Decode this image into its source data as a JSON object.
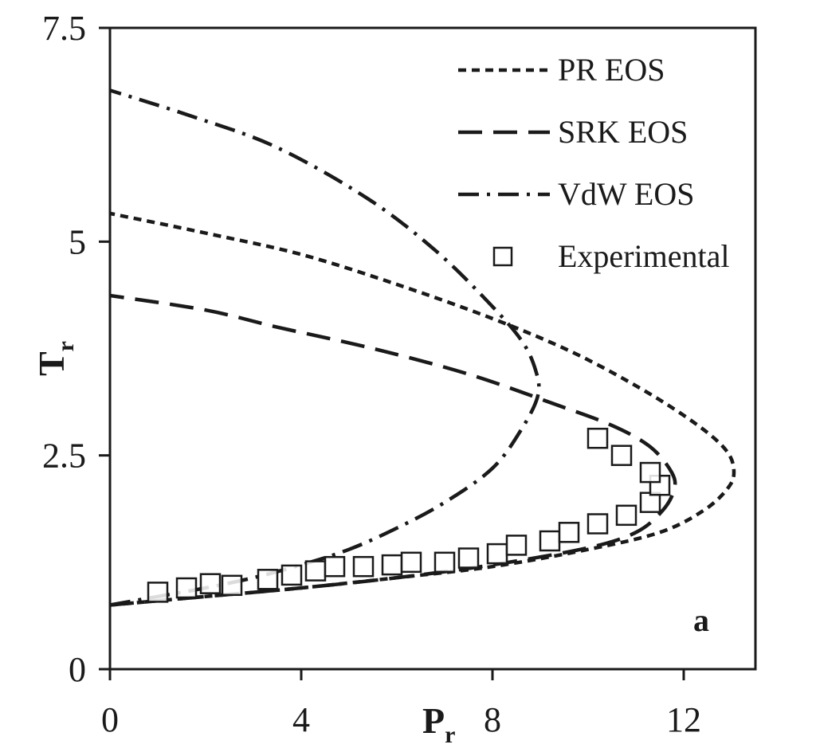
{
  "chart_data": {
    "type": "scatter",
    "title": "",
    "panel_label": "a",
    "xlabel": {
      "main": "P",
      "sub": "r"
    },
    "ylabel": {
      "main": "T",
      "sub": "r"
    },
    "xlim": [
      0,
      13.5
    ],
    "ylim": [
      0,
      7.5
    ],
    "xticks": [
      {
        "value": 0,
        "label": "0"
      },
      {
        "value": 4,
        "label": "4"
      },
      {
        "value": 8,
        "label": "8"
      },
      {
        "value": 12,
        "label": "12"
      }
    ],
    "yticks": [
      {
        "value": 0,
        "label": "0"
      },
      {
        "value": 2.5,
        "label": "2.5"
      },
      {
        "value": 5,
        "label": "5"
      },
      {
        "value": 7.5,
        "label": "7.5"
      }
    ],
    "grid": false,
    "legend_position": "top-right",
    "series": [
      {
        "name": "PR EOS",
        "kind": "line",
        "dash": "short-dash",
        "color": "#1a1a1a",
        "points": [
          [
            0,
            0.75
          ],
          [
            2,
            0.85
          ],
          [
            4,
            0.95
          ],
          [
            6,
            1.07
          ],
          [
            8,
            1.2
          ],
          [
            10,
            1.4
          ],
          [
            11.5,
            1.6
          ],
          [
            12.4,
            1.85
          ],
          [
            12.9,
            2.1
          ],
          [
            13.05,
            2.3
          ],
          [
            12.9,
            2.55
          ],
          [
            12.3,
            2.85
          ],
          [
            11.2,
            3.25
          ],
          [
            9.7,
            3.7
          ],
          [
            8,
            4.1
          ],
          [
            6,
            4.5
          ],
          [
            4,
            4.85
          ],
          [
            2,
            5.1
          ],
          [
            0,
            5.33
          ]
        ]
      },
      {
        "name": "SRK EOS",
        "kind": "line",
        "dash": "long-dash",
        "color": "#1a1a1a",
        "points": [
          [
            0,
            0.75
          ],
          [
            2,
            0.85
          ],
          [
            4,
            0.95
          ],
          [
            6,
            1.07
          ],
          [
            8,
            1.22
          ],
          [
            10,
            1.42
          ],
          [
            11,
            1.6
          ],
          [
            11.55,
            1.85
          ],
          [
            11.8,
            2.1
          ],
          [
            11.75,
            2.3
          ],
          [
            11.3,
            2.6
          ],
          [
            10.5,
            2.85
          ],
          [
            9.3,
            3.1
          ],
          [
            7.5,
            3.45
          ],
          [
            5.5,
            3.75
          ],
          [
            3.5,
            4.0
          ],
          [
            2,
            4.2
          ],
          [
            0,
            4.37
          ]
        ]
      },
      {
        "name": "VdW EOS",
        "kind": "line",
        "dash": "dash-dot",
        "color": "#1a1a1a",
        "points": [
          [
            0,
            0.75
          ],
          [
            1,
            0.85
          ],
          [
            2,
            0.95
          ],
          [
            3,
            1.07
          ],
          [
            4,
            1.22
          ],
          [
            5,
            1.4
          ],
          [
            6,
            1.65
          ],
          [
            7,
            1.95
          ],
          [
            8,
            2.35
          ],
          [
            8.6,
            2.8
          ],
          [
            8.95,
            3.2
          ],
          [
            8.9,
            3.5
          ],
          [
            8.6,
            3.85
          ],
          [
            7.9,
            4.3
          ],
          [
            6.8,
            4.9
          ],
          [
            5.4,
            5.5
          ],
          [
            3.5,
            6.1
          ],
          [
            1.8,
            6.45
          ],
          [
            0,
            6.77
          ]
        ]
      },
      {
        "name": "Experimental",
        "kind": "marker",
        "marker": "open-square",
        "color": "#1a1a1a",
        "points": [
          [
            1.0,
            0.9
          ],
          [
            1.6,
            0.95
          ],
          [
            2.1,
            1.0
          ],
          [
            2.55,
            0.98
          ],
          [
            3.3,
            1.05
          ],
          [
            3.8,
            1.1
          ],
          [
            4.3,
            1.15
          ],
          [
            4.7,
            1.2
          ],
          [
            5.3,
            1.2
          ],
          [
            5.9,
            1.22
          ],
          [
            6.3,
            1.25
          ],
          [
            7.0,
            1.25
          ],
          [
            7.5,
            1.3
          ],
          [
            8.1,
            1.35
          ],
          [
            8.5,
            1.45
          ],
          [
            9.2,
            1.5
          ],
          [
            9.6,
            1.6
          ],
          [
            10.2,
            1.7
          ],
          [
            10.8,
            1.8
          ],
          [
            11.3,
            1.95
          ],
          [
            11.5,
            2.15
          ],
          [
            11.3,
            2.3
          ],
          [
            10.7,
            2.5
          ],
          [
            10.2,
            2.7
          ]
        ]
      }
    ]
  }
}
